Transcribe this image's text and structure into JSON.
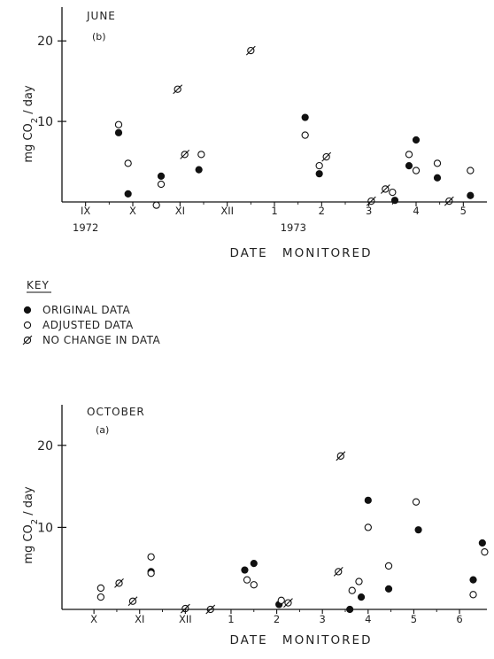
{
  "chart_data": [
    {
      "type": "scatter",
      "title": "JUNE",
      "subtitle": "(b)",
      "xlabel": "DATE MONITORED",
      "ylabel": "mg CO2 / day",
      "ylabel_main": "mg CO",
      "ylabel_sub": "2",
      "ylabel_rest": " / day",
      "xlim": [
        8.5,
        17.5
      ],
      "ylim": [
        0,
        22
      ],
      "yticks": [
        10,
        20
      ],
      "xticks": [
        {
          "label": "IX",
          "x": 9
        },
        {
          "label": "X",
          "x": 10
        },
        {
          "label": "XI",
          "x": 11
        },
        {
          "label": "XII",
          "x": 12
        },
        {
          "label": "1",
          "x": 13
        },
        {
          "label": "2",
          "x": 14
        },
        {
          "label": "3",
          "x": 15
        },
        {
          "label": "4",
          "x": 16
        },
        {
          "label": "5",
          "x": 17
        }
      ],
      "year_labels": [
        {
          "label": "1972",
          "x": 9
        },
        {
          "label": "1973",
          "x": 13.4
        }
      ],
      "series": [
        {
          "name": "ORIGINAL DATA",
          "marker": "filled",
          "points": [
            [
              9.7,
              8.6
            ],
            [
              9.9,
              1.0
            ],
            [
              10.6,
              3.2
            ],
            [
              11.4,
              4.0
            ],
            [
              13.65,
              10.5
            ],
            [
              13.95,
              3.5
            ],
            [
              15.55,
              0.2
            ],
            [
              15.85,
              4.5
            ],
            [
              16.0,
              7.7
            ],
            [
              16.45,
              3.0
            ],
            [
              17.15,
              0.8
            ]
          ]
        },
        {
          "name": "ADJUSTED DATA",
          "marker": "open",
          "points": [
            [
              9.7,
              9.6
            ],
            [
              9.9,
              4.8
            ],
            [
              10.5,
              -0.4
            ],
            [
              10.6,
              2.2
            ],
            [
              11.45,
              5.9
            ],
            [
              13.65,
              8.3
            ],
            [
              13.95,
              4.5
            ],
            [
              15.5,
              1.2
            ],
            [
              15.85,
              5.9
            ],
            [
              16.0,
              3.9
            ],
            [
              16.45,
              4.8
            ],
            [
              17.15,
              3.9
            ]
          ]
        },
        {
          "name": "NO CHANGE IN DATA",
          "marker": "slashed",
          "points": [
            [
              10.95,
              14.0
            ],
            [
              11.1,
              5.9
            ],
            [
              12.5,
              18.8
            ],
            [
              14.1,
              5.6
            ],
            [
              15.05,
              0.1
            ],
            [
              15.35,
              1.6
            ],
            [
              16.7,
              0.1
            ]
          ]
        }
      ]
    },
    {
      "type": "scatter",
      "title": "OCTOBER",
      "subtitle": "(a)",
      "xlabel": "DATE MONITORED",
      "ylabel": "mg CO2 / day",
      "ylabel_main": "mg CO",
      "ylabel_sub": "2",
      "ylabel_rest": " / day",
      "xlim": [
        9.3,
        18.6
      ],
      "ylim": [
        0,
        23
      ],
      "yticks": [
        10,
        20
      ],
      "xticks": [
        {
          "label": "X",
          "x": 10
        },
        {
          "label": "XI",
          "x": 11
        },
        {
          "label": "XII",
          "x": 12
        },
        {
          "label": "1",
          "x": 13
        },
        {
          "label": "2",
          "x": 14
        },
        {
          "label": "3",
          "x": 15
        },
        {
          "label": "4",
          "x": 16
        },
        {
          "label": "5",
          "x": 17
        },
        {
          "label": "6",
          "x": 18
        }
      ],
      "series": [
        {
          "name": "ORIGINAL DATA",
          "marker": "filled",
          "points": [
            [
              11.25,
              4.6
            ],
            [
              13.3,
              4.8
            ],
            [
              13.5,
              5.6
            ],
            [
              14.05,
              0.6
            ],
            [
              15.6,
              0.0
            ],
            [
              15.85,
              1.5
            ],
            [
              16.0,
              13.3
            ],
            [
              16.45,
              2.5
            ],
            [
              17.1,
              9.7
            ],
            [
              18.3,
              3.6
            ],
            [
              18.5,
              8.1
            ]
          ]
        },
        {
          "name": "ADJUSTED DATA",
          "marker": "open",
          "points": [
            [
              10.15,
              1.5
            ],
            [
              10.15,
              2.6
            ],
            [
              11.25,
              4.4
            ],
            [
              11.25,
              6.4
            ],
            [
              13.35,
              3.6
            ],
            [
              13.5,
              3.0
            ],
            [
              14.1,
              1.1
            ],
            [
              15.65,
              2.3
            ],
            [
              15.8,
              3.4
            ],
            [
              16.0,
              10.0
            ],
            [
              16.45,
              5.3
            ],
            [
              17.05,
              13.1
            ],
            [
              18.3,
              1.8
            ],
            [
              18.55,
              7.0
            ]
          ]
        },
        {
          "name": "NO CHANGE IN DATA",
          "marker": "slashed",
          "points": [
            [
              10.55,
              3.2
            ],
            [
              10.85,
              1.0
            ],
            [
              12.0,
              0.1
            ],
            [
              12.55,
              0.0
            ],
            [
              14.25,
              0.8
            ],
            [
              15.4,
              18.7
            ],
            [
              15.35,
              4.6
            ]
          ]
        }
      ]
    }
  ],
  "legend": {
    "title": "KEY",
    "items": [
      {
        "marker": "filled",
        "label": "ORIGINAL DATA"
      },
      {
        "marker": "open",
        "label": "ADJUSTED DATA"
      },
      {
        "marker": "slashed",
        "label": "NO CHANGE IN DATA"
      }
    ]
  }
}
